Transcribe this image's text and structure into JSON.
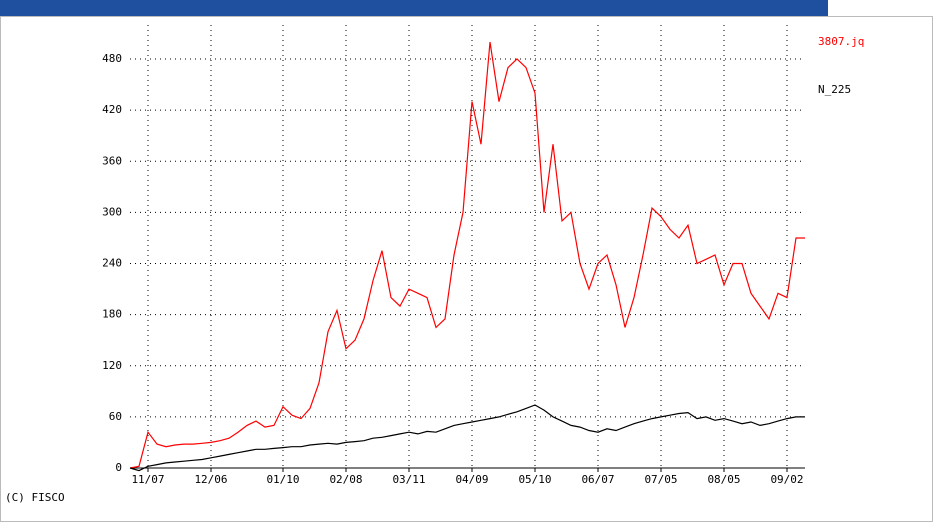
{
  "chart_data": {
    "type": "line",
    "categories": [
      null,
      null,
      "11/07",
      null,
      null,
      null,
      null,
      null,
      null,
      "12/06",
      null,
      null,
      null,
      null,
      null,
      null,
      null,
      "01/10",
      null,
      null,
      null,
      null,
      null,
      null,
      "02/08",
      null,
      null,
      null,
      null,
      null,
      null,
      "03/11",
      null,
      null,
      null,
      null,
      null,
      null,
      "04/09",
      null,
      null,
      null,
      null,
      null,
      null,
      "05/10",
      null,
      null,
      null,
      null,
      null,
      null,
      "06/07",
      null,
      null,
      null,
      null,
      null,
      null,
      "07/05",
      null,
      null,
      null,
      null,
      null,
      null,
      "08/05",
      null,
      null,
      null,
      null,
      null,
      null,
      "09/02",
      null,
      null
    ],
    "series": [
      {
        "name": "3807.jq",
        "color": "#ff0000",
        "values": [
          0,
          2,
          42,
          28,
          25,
          27,
          28,
          28,
          29,
          30,
          32,
          35,
          42,
          50,
          55,
          48,
          50,
          72,
          62,
          58,
          70,
          100,
          160,
          185,
          140,
          150,
          175,
          220,
          255,
          200,
          190,
          210,
          205,
          200,
          165,
          175,
          250,
          300,
          430,
          380,
          500,
          430,
          470,
          480,
          470,
          440,
          300,
          380,
          290,
          300,
          240,
          210,
          240,
          250,
          215,
          165,
          200,
          250,
          305,
          295,
          280,
          270,
          285,
          240,
          245,
          250,
          215,
          240,
          240,
          205,
          190,
          175,
          205,
          200,
          270,
          270
        ]
      },
      {
        "name": "N_225",
        "color": "#000000",
        "values": [
          0,
          -3,
          2,
          4,
          6,
          7,
          8,
          9,
          10,
          12,
          14,
          16,
          18,
          20,
          22,
          22,
          23,
          24,
          25,
          25,
          27,
          28,
          29,
          28,
          30,
          31,
          32,
          35,
          36,
          38,
          40,
          42,
          40,
          43,
          42,
          46,
          50,
          52,
          54,
          56,
          58,
          60,
          63,
          66,
          70,
          74,
          68,
          60,
          55,
          50,
          48,
          44,
          42,
          46,
          44,
          48,
          52,
          55,
          58,
          60,
          62,
          64,
          65,
          58,
          60,
          56,
          58,
          55,
          52,
          54,
          50,
          52,
          55,
          58,
          60,
          60
        ]
      }
    ],
    "ylim": [
      0,
      520
    ],
    "yticks": [
      0,
      60,
      120,
      180,
      240,
      300,
      360,
      420,
      480
    ],
    "grid": true,
    "footer": "(C) FISCO"
  }
}
